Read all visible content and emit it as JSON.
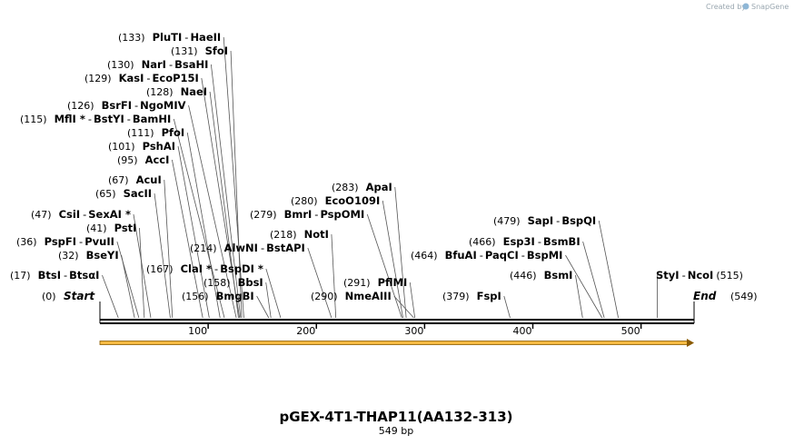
{
  "brand": {
    "created_by": "Created by",
    "name": "SnapGene"
  },
  "title": "pGEX-4T1-THAP11(AA132-313)",
  "length_label": "549 bp",
  "bp_length": 549,
  "ticks": [
    "100",
    "200",
    "300",
    "400",
    "500"
  ],
  "ends": {
    "start": {
      "pos": "(0)",
      "label": "Start",
      "bp": 0
    },
    "end": {
      "pos": "(549)",
      "label": "End",
      "bp": 549
    }
  },
  "colors": {
    "line": "#000000",
    "feature_fill": "#f5ba42",
    "feature_stroke": "#8a5a00",
    "leader": "#555555"
  },
  "left_labels": [
    {
      "pos": "(133)",
      "enzymes": [
        "PluTI",
        "HaeII"
      ],
      "bp": 133
    },
    {
      "pos": "(131)",
      "enzymes": [
        "SfoI"
      ],
      "bp": 131
    },
    {
      "pos": "(130)",
      "enzymes": [
        "NarI",
        "BsaHI"
      ],
      "bp": 130
    },
    {
      "pos": "(129)",
      "enzymes": [
        "KasI",
        "EcoP15I"
      ],
      "bp": 129
    },
    {
      "pos": "(128)",
      "enzymes": [
        "NaeI"
      ],
      "bp": 128
    },
    {
      "pos": "(126)",
      "enzymes": [
        "BsrFI",
        "NgoMIV"
      ],
      "bp": 126
    },
    {
      "pos": "(115)",
      "enzymes": [
        "MflI *",
        "BstYI",
        "BamHI"
      ],
      "bp": 115
    },
    {
      "pos": "(111)",
      "enzymes": [
        "PfoI"
      ],
      "bp": 111
    },
    {
      "pos": "(101)",
      "enzymes": [
        "PshAI"
      ],
      "bp": 101
    },
    {
      "pos": "(95)",
      "enzymes": [
        "AccI"
      ],
      "bp": 95
    },
    {
      "pos": "(67)",
      "enzymes": [
        "AcuI"
      ],
      "bp": 67
    },
    {
      "pos": "(65)",
      "enzymes": [
        "SacII"
      ],
      "bp": 65
    },
    {
      "pos": "(47)",
      "enzymes": [
        "CsiI",
        "SexAI *"
      ],
      "bp": 47
    },
    {
      "pos": "(41)",
      "enzymes": [
        "PstI"
      ],
      "bp": 41
    },
    {
      "pos": "(36)",
      "enzymes": [
        "PspFI",
        "PvuII"
      ],
      "bp": 36
    },
    {
      "pos": "(32)",
      "enzymes": [
        "BseYI"
      ],
      "bp": 32
    },
    {
      "pos": "(17)",
      "enzymes": [
        "BtsI",
        "BtsαI"
      ],
      "bp": 17
    }
  ],
  "mid_labels": [
    {
      "pos": "(214)",
      "enzymes": [
        "AlwNI",
        "BstAPI"
      ],
      "bp": 214
    },
    {
      "pos": "(167)",
      "enzymes": [
        "ClaI *",
        "BspDI *"
      ],
      "bp": 167
    },
    {
      "pos": "(158)",
      "enzymes": [
        "BbsI"
      ],
      "bp": 158
    },
    {
      "pos": "(156)",
      "enzymes": [
        "BmgBI"
      ],
      "bp": 156
    },
    {
      "pos": "(283)",
      "enzymes": [
        "ApaI"
      ],
      "bp": 283
    },
    {
      "pos": "(280)",
      "enzymes": [
        "EcoO109I"
      ],
      "bp": 280
    },
    {
      "pos": "(279)",
      "enzymes": [
        "BmrI",
        "PspOMI"
      ],
      "bp": 279
    },
    {
      "pos": "(218)",
      "enzymes": [
        "NotI"
      ],
      "bp": 218
    },
    {
      "pos": "(291)",
      "enzymes": [
        "PflMI"
      ],
      "bp": 291
    },
    {
      "pos": "(290)",
      "enzymes": [
        "NmeAIII"
      ],
      "bp": 290
    },
    {
      "pos": "(379)",
      "enzymes": [
        "FspI"
      ],
      "bp": 379
    },
    {
      "pos": "(479)",
      "enzymes": [
        "SapI",
        "BspQI"
      ],
      "bp": 479
    },
    {
      "pos": "(466)",
      "enzymes": [
        "Esp3I",
        "BsmBI"
      ],
      "bp": 466
    },
    {
      "pos": "(464)",
      "enzymes": [
        "BfuAI",
        "PaqCI",
        "BspMI"
      ],
      "bp": 464
    },
    {
      "pos": "(446)",
      "enzymes": [
        "BsmI"
      ],
      "bp": 446
    }
  ],
  "right_labels": [
    {
      "pos": "(515)",
      "enzymes": [
        "StyI",
        "NcoI"
      ],
      "bp": 515
    }
  ]
}
